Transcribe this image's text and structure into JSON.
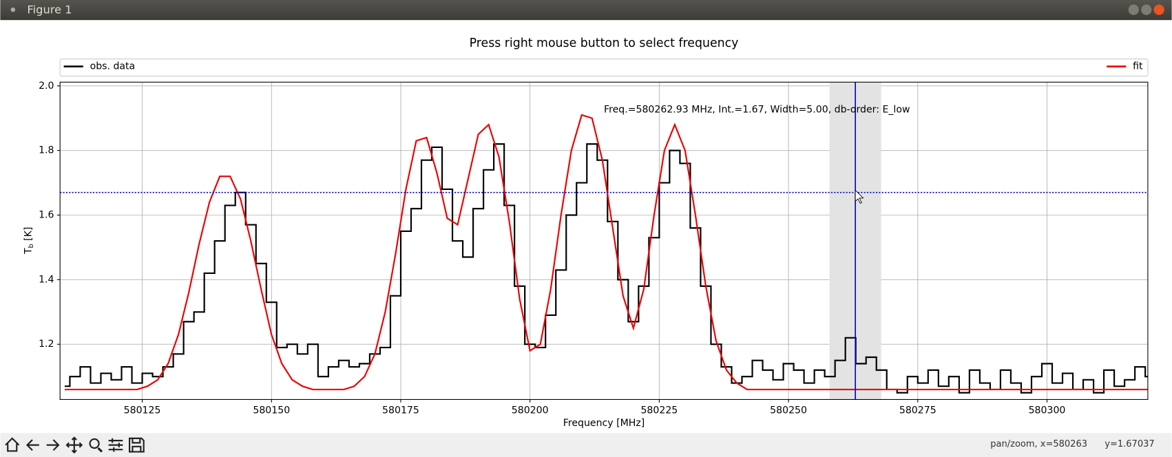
{
  "window": {
    "title": "Figure 1"
  },
  "chart_data": {
    "type": "line",
    "title": "Press right mouse button to select frequency",
    "xlabel": "Frequency [MHz]",
    "ylabel": {
      "base": "T",
      "sub": "b",
      "unit": "[K]"
    },
    "annotation": "Freq.=580262.93 MHz, Int.=1.67, Width=5.00, db-order: E_low",
    "xlim": [
      580109.1,
      580319.5
    ],
    "ylim": [
      1.029,
      2.0116
    ],
    "xticks": [
      580125,
      580150,
      580175,
      580200,
      580225,
      580250,
      580275,
      580300
    ],
    "yticks": [
      1.2,
      1.4,
      1.6,
      {
        "value": 1.8,
        "label": "1.8"
      },
      {
        "value": 2,
        "label": "2.0"
      }
    ],
    "grid": true,
    "legend": "top",
    "hline": {
      "value": 1.67,
      "color": "#0000cc"
    },
    "vline": {
      "value": 580262.93,
      "color": "#0000cc"
    },
    "span": {
      "range": [
        580257.93,
        580267.93
      ],
      "color": "#e3e3e3"
    },
    "x": [
      580110,
      580112,
      580114,
      580116,
      580118,
      580120,
      580122,
      580124,
      580126,
      580128,
      580130,
      580132,
      580134,
      580136,
      580138,
      580140,
      580142,
      580144,
      580146,
      580148,
      580150,
      580152,
      580154,
      580156,
      580158,
      580160,
      580162,
      580164,
      580166,
      580168,
      580170,
      580172,
      580174,
      580176,
      580178,
      580180,
      580182,
      580184,
      580186,
      580188,
      580190,
      580192,
      580194,
      580196,
      580198,
      580200,
      580202,
      580204,
      580206,
      580208,
      580210,
      580212,
      580214,
      580216,
      580218,
      580220,
      580222,
      580224,
      580226,
      580228,
      580230,
      580232,
      580234,
      580236,
      580238,
      580240,
      580242,
      580244,
      580246,
      580248,
      580250,
      580252,
      580254,
      580256,
      580258,
      580260,
      580262,
      580264,
      580266,
      580268,
      580270,
      580272,
      580274,
      580276,
      580278,
      580280,
      580282,
      580284,
      580286,
      580288,
      580290,
      580292,
      580294,
      580296,
      580298,
      580300,
      580302,
      580304,
      580306,
      580308,
      580310,
      580312,
      580314,
      580316,
      580318,
      580320
    ],
    "series": [
      {
        "name": "obs. data",
        "color": "#000000",
        "drawstyle": "steps-mid",
        "values": [
          1.07,
          1.1,
          1.13,
          1.08,
          1.11,
          1.09,
          1.13,
          1.08,
          1.11,
          1.1,
          1.13,
          1.17,
          1.27,
          1.3,
          1.42,
          1.52,
          1.63,
          1.67,
          1.57,
          1.45,
          1.33,
          1.19,
          1.2,
          1.17,
          1.2,
          1.1,
          1.13,
          1.15,
          1.13,
          1.14,
          1.17,
          1.19,
          1.35,
          1.55,
          1.62,
          1.77,
          1.81,
          1.68,
          1.52,
          1.47,
          1.62,
          1.74,
          1.82,
          1.63,
          1.38,
          1.2,
          1.19,
          1.29,
          1.43,
          1.6,
          1.7,
          1.82,
          1.77,
          1.58,
          1.4,
          1.27,
          1.38,
          1.53,
          1.7,
          1.8,
          1.76,
          1.56,
          1.38,
          1.2,
          1.13,
          1.08,
          1.1,
          1.15,
          1.12,
          1.09,
          1.14,
          1.12,
          1.08,
          1.12,
          1.1,
          1.15,
          1.22,
          1.14,
          1.16,
          1.12,
          1.06,
          1.05,
          1.1,
          1.08,
          1.12,
          1.07,
          1.1,
          1.05,
          1.12,
          1.08,
          1.06,
          1.12,
          1.08,
          1.05,
          1.1,
          1.14,
          1.08,
          1.11,
          1.06,
          1.09,
          1.05,
          1.12,
          1.07,
          1.09,
          1.13,
          1.1
        ]
      },
      {
        "name": "fit",
        "color": "#ee0000",
        "drawstyle": "default",
        "values": [
          1.06,
          1.06,
          1.06,
          1.06,
          1.06,
          1.06,
          1.06,
          1.06,
          1.07,
          1.09,
          1.14,
          1.23,
          1.36,
          1.51,
          1.64,
          1.72,
          1.72,
          1.65,
          1.52,
          1.37,
          1.23,
          1.14,
          1.09,
          1.07,
          1.06,
          1.06,
          1.06,
          1.06,
          1.07,
          1.1,
          1.17,
          1.3,
          1.48,
          1.68,
          1.83,
          1.84,
          1.73,
          1.59,
          1.57,
          1.71,
          1.85,
          1.88,
          1.78,
          1.58,
          1.34,
          1.18,
          1.2,
          1.37,
          1.6,
          1.8,
          1.91,
          1.9,
          1.77,
          1.56,
          1.35,
          1.25,
          1.37,
          1.6,
          1.8,
          1.88,
          1.8,
          1.6,
          1.38,
          1.21,
          1.12,
          1.08,
          1.06,
          1.06,
          1.06,
          1.06,
          1.06,
          1.06,
          1.06,
          1.06,
          1.06,
          1.06,
          1.06,
          1.06,
          1.06,
          1.06,
          1.06,
          1.06,
          1.06,
          1.06,
          1.06,
          1.06,
          1.06,
          1.06,
          1.06,
          1.06,
          1.06,
          1.06,
          1.06,
          1.06,
          1.06,
          1.06,
          1.06,
          1.06,
          1.06,
          1.06,
          1.06,
          1.06,
          1.06,
          1.06,
          1.06,
          1.06
        ]
      }
    ]
  },
  "status": {
    "mode": "pan/zoom, x=580263",
    "y": "y=1.67037"
  }
}
